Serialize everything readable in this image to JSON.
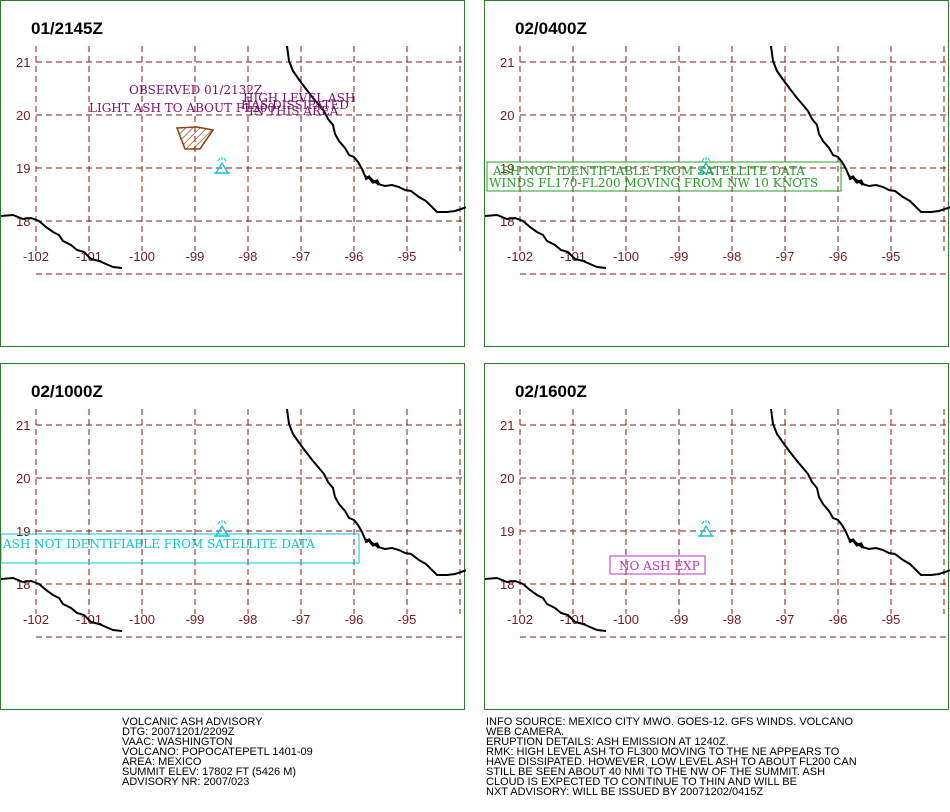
{
  "colors": {
    "grid": "#8b1a1a",
    "coast": "#000000",
    "frame": "#2e7d2e",
    "obs": "#7b1070",
    "polygon": "#8b4513",
    "green_text": "#22a022",
    "cyan": "#00c8d8",
    "magenta": "#c030c0",
    "volcano": "#00c8d8"
  },
  "axes": {
    "lon_labels": [
      "-102",
      "-101",
      "-100",
      "-99",
      "-98",
      "-97",
      "-96",
      "-95"
    ],
    "lat_labels": [
      "21",
      "20",
      "19",
      "18"
    ]
  },
  "volcano_icon": "volcano-icon",
  "panels": [
    {
      "title": "01/2145Z",
      "annotations": [
        {
          "text": "OBSERVED 01/2132Z",
          "color_key": "obs"
        },
        {
          "text": "LIGHT ASH TO ABOUT FL200",
          "color_key": "obs"
        },
        {
          "text": "HIGH LEVEL ASH",
          "color_key": "obs"
        },
        {
          "text": "HAS DISSIPATED",
          "color_key": "obs"
        },
        {
          "text": "IN THIS AREA",
          "color_key": "obs"
        }
      ]
    },
    {
      "title": "02/0400Z",
      "annotations": [
        {
          "text": "ASH NOT IDENTIFIABLE FROM SATELLITE DATA",
          "color_key": "green_text"
        },
        {
          "text": "WINDS FL170-FL200 MOVING FROM NW 10 KNOTS",
          "color_key": "green_text"
        }
      ]
    },
    {
      "title": "02/1000Z",
      "annotations": [
        {
          "text": "ASH NOT IDENTIFIABLE FROM SATELLITE DATA",
          "color_key": "cyan"
        }
      ]
    },
    {
      "title": "02/1600Z",
      "annotations": [
        {
          "text": "NO ASH EXP",
          "color_key": "magenta"
        }
      ]
    }
  ],
  "advisory_left": [
    "VOLCANIC ASH ADVISORY",
    "DTG: 20071201/2209Z",
    "VAAC: WASHINGTON",
    "VOLCANO: POPOCATEPETL 1401-09",
    "AREA: MEXICO",
    "SUMMIT ELEV: 17802 FT (5426 M)",
    "ADVISORY NR: 2007/023"
  ],
  "advisory_right": [
    "INFO SOURCE: MEXICO CITY MWO. GOES-12. GFS WINDS. VOLCANO",
    "WEB CAMERA.",
    "ERUPTION DETAILS: ASH EMISSION AT 1240Z.",
    "RMK: HIGH LEVEL ASH TO FL300 MOVING TO THE NE APPEARS TO",
    "HAVE DISSIPATED. HOWEVER, LOW LEVEL ASH TO ABOUT FL200 CAN",
    "STILL BE SEEN ABOUT 40 NMI TO THE NW OF THE SUMMIT. ASH",
    "CLOUD IS EXPECTED TO CONTINUE TO THIN AND WILL BE",
    "NXT ADVISORY: WILL BE ISSUED BY 20071202/0415Z"
  ]
}
